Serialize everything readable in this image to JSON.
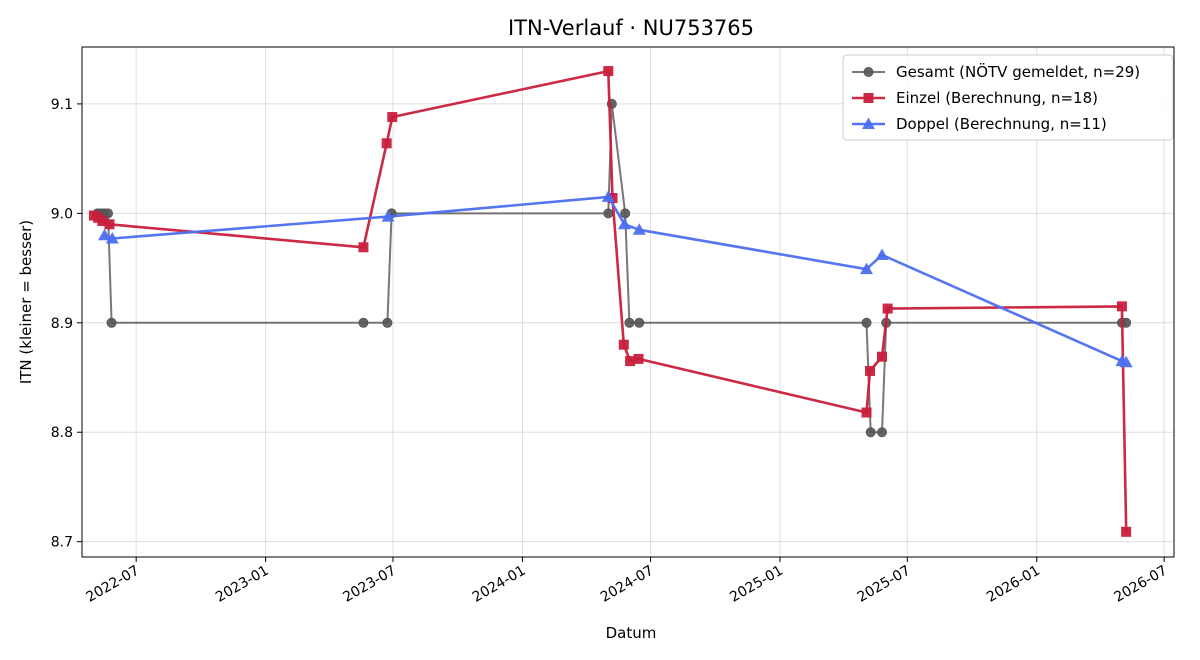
{
  "chart_data": {
    "type": "line",
    "title": "ITN-Verlauf · NU753765",
    "xlabel": "Datum",
    "ylabel": "ITN  (kleiner = besser)",
    "x_type": "date",
    "xlim": [
      "2022-04-15",
      "2026-07-15"
    ],
    "ylim": [
      8.686,
      9.152
    ],
    "x_ticks": [
      {
        "date": "2022-07-01",
        "label": "2022-07"
      },
      {
        "date": "2023-01-01",
        "label": "2023-01"
      },
      {
        "date": "2023-07-01",
        "label": "2023-07"
      },
      {
        "date": "2024-01-01",
        "label": "2024-01"
      },
      {
        "date": "2024-07-01",
        "label": "2024-07"
      },
      {
        "date": "2025-01-01",
        "label": "2025-01"
      },
      {
        "date": "2025-07-01",
        "label": "2025-07"
      },
      {
        "date": "2026-01-01",
        "label": "2026-01"
      },
      {
        "date": "2026-07-01",
        "label": "2026-07"
      }
    ],
    "y_ticks": [
      {
        "value": 8.7,
        "label": "8.7"
      },
      {
        "value": 8.8,
        "label": "8.8"
      },
      {
        "value": 8.9,
        "label": "8.9"
      },
      {
        "value": 9.0,
        "label": "9.0"
      },
      {
        "value": 9.1,
        "label": "9.1"
      }
    ],
    "grid": true,
    "legend_position": "top-right",
    "series": [
      {
        "name": "Gesamt (NÖTV gemeldet, n=29)",
        "color": "#555555",
        "marker": "circle",
        "points": [
          {
            "x": "2022-05-07",
            "y": 9.0
          },
          {
            "x": "2022-05-12",
            "y": 9.0
          },
          {
            "x": "2022-05-17",
            "y": 9.0
          },
          {
            "x": "2022-05-22",
            "y": 9.0
          },
          {
            "x": "2022-05-27",
            "y": 8.9
          },
          {
            "x": "2023-05-20",
            "y": 8.9
          },
          {
            "x": "2023-06-23",
            "y": 8.9
          },
          {
            "x": "2023-06-29",
            "y": 9.0
          },
          {
            "x": "2024-05-02",
            "y": 9.0
          },
          {
            "x": "2024-05-07",
            "y": 9.1
          },
          {
            "x": "2024-05-26",
            "y": 9.0
          },
          {
            "x": "2024-06-01",
            "y": 8.9
          },
          {
            "x": "2024-06-15",
            "y": 8.9
          },
          {
            "x": "2025-05-04",
            "y": 8.9
          },
          {
            "x": "2025-05-10",
            "y": 8.8
          },
          {
            "x": "2025-05-26",
            "y": 8.8
          },
          {
            "x": "2025-06-01",
            "y": 8.9
          },
          {
            "x": "2026-05-02",
            "y": 8.9
          },
          {
            "x": "2026-05-08",
            "y": 8.9
          }
        ]
      },
      {
        "name": "Einzel (Berechnung, n=18)",
        "color": "#c81e3c",
        "marker": "square",
        "points": [
          {
            "x": "2022-05-02",
            "y": 8.998
          },
          {
            "x": "2022-05-08",
            "y": 8.996
          },
          {
            "x": "2022-05-14",
            "y": 8.993
          },
          {
            "x": "2022-05-24",
            "y": 8.99
          },
          {
            "x": "2023-05-20",
            "y": 8.969
          },
          {
            "x": "2023-06-22",
            "y": 9.064
          },
          {
            "x": "2023-06-30",
            "y": 9.088
          },
          {
            "x": "2024-05-02",
            "y": 9.13
          },
          {
            "x": "2024-05-08",
            "y": 9.014
          },
          {
            "x": "2024-05-24",
            "y": 8.88
          },
          {
            "x": "2024-06-02",
            "y": 8.865
          },
          {
            "x": "2024-06-14",
            "y": 8.867
          },
          {
            "x": "2025-05-04",
            "y": 8.818
          },
          {
            "x": "2025-05-09",
            "y": 8.856
          },
          {
            "x": "2025-05-26",
            "y": 8.869
          },
          {
            "x": "2025-06-03",
            "y": 8.913
          },
          {
            "x": "2026-05-02",
            "y": 8.915
          },
          {
            "x": "2026-05-08",
            "y": 8.709
          }
        ]
      },
      {
        "name": "Doppel (Berechnung, n=11)",
        "color": "#4c6fef",
        "marker": "triangle",
        "points": [
          {
            "x": "2022-05-17",
            "y": 8.98
          },
          {
            "x": "2022-05-28",
            "y": 8.977
          },
          {
            "x": "2023-06-24",
            "y": 8.997
          },
          {
            "x": "2024-05-02",
            "y": 9.015
          },
          {
            "x": "2024-05-25",
            "y": 8.99
          },
          {
            "x": "2024-06-15",
            "y": 8.985
          },
          {
            "x": "2025-05-04",
            "y": 8.949
          },
          {
            "x": "2025-05-26",
            "y": 8.962
          },
          {
            "x": "2026-05-02",
            "y": 8.865
          },
          {
            "x": "2026-05-08",
            "y": 8.864
          }
        ]
      }
    ]
  }
}
